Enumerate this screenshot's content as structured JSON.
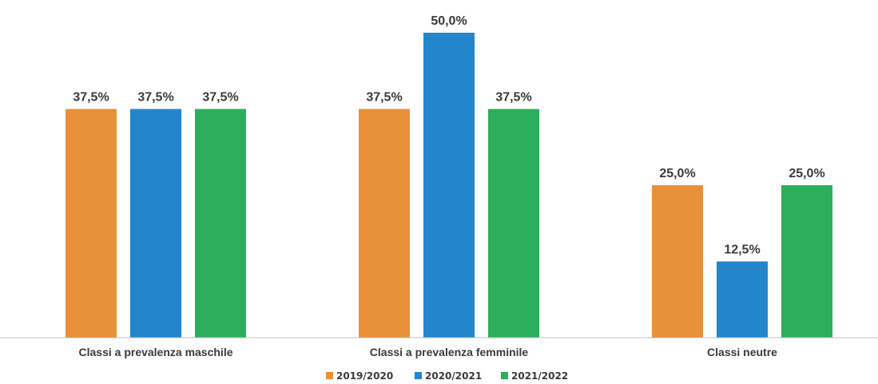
{
  "chart_data": {
    "type": "bar",
    "title": "",
    "xlabel": "",
    "ylabel": "",
    "ylim": [
      0,
      55
    ],
    "grid": false,
    "legend_position": "bottom",
    "categories": [
      "Classi a prevalenza maschile",
      "Classi a prevalenza femminile",
      "Classi neutre"
    ],
    "series": [
      {
        "name": "2019/2020",
        "color": "#E8903A",
        "values": [
          37.5,
          37.5,
          25.0
        ],
        "labels": [
          "37,5%",
          "37,5%",
          "25,0%"
        ]
      },
      {
        "name": "2020/2021",
        "color": "#2386CC",
        "values": [
          37.5,
          50.0,
          12.5
        ],
        "labels": [
          "37,5%",
          "50,0%",
          "12,5%"
        ]
      },
      {
        "name": "2021/2022",
        "color": "#2BAF5C",
        "values": [
          37.5,
          37.5,
          25.0
        ],
        "labels": [
          "37,5%",
          "37,5%",
          "25,0%"
        ]
      }
    ],
    "axis_color": "#bfbfbf"
  }
}
